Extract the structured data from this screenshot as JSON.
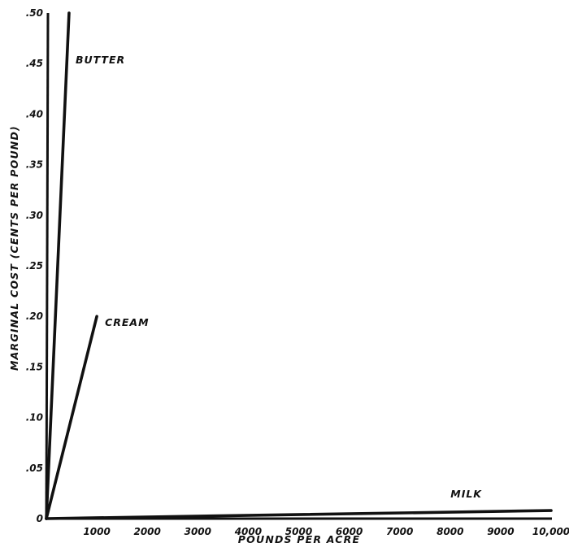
{
  "chart_data": {
    "type": "line",
    "title": "",
    "xlabel": "POUNDS PER ACRE",
    "ylabel": "MARGINAL COST (CENTS PER POUND)",
    "xlim": [
      0,
      10000
    ],
    "ylim": [
      0,
      0.5
    ],
    "x_ticks": [
      1000,
      2000,
      3000,
      4000,
      5000,
      6000,
      7000,
      8000,
      9000,
      10000
    ],
    "x_tick_labels": [
      "1000",
      "2000",
      "3000",
      "4000",
      "5000",
      "6000",
      "7000",
      "8000",
      "9000",
      "10,000"
    ],
    "y_ticks": [
      0,
      0.05,
      0.1,
      0.15,
      0.2,
      0.25,
      0.3,
      0.35,
      0.4,
      0.45,
      0.5
    ],
    "y_tick_labels": [
      "0",
      ".05",
      ".10",
      ".15",
      ".20",
      ".25",
      ".30",
      ".35",
      ".40",
      ".45",
      ".50"
    ],
    "grid": false,
    "legend": "none",
    "series": [
      {
        "name": "BUTTER",
        "x": [
          0,
          450
        ],
        "y": [
          0,
          0.5
        ]
      },
      {
        "name": "CREAM",
        "x": [
          0,
          1000
        ],
        "y": [
          0,
          0.2
        ]
      },
      {
        "name": "MILK",
        "x": [
          0,
          10000
        ],
        "y": [
          0,
          0.008
        ]
      }
    ]
  }
}
